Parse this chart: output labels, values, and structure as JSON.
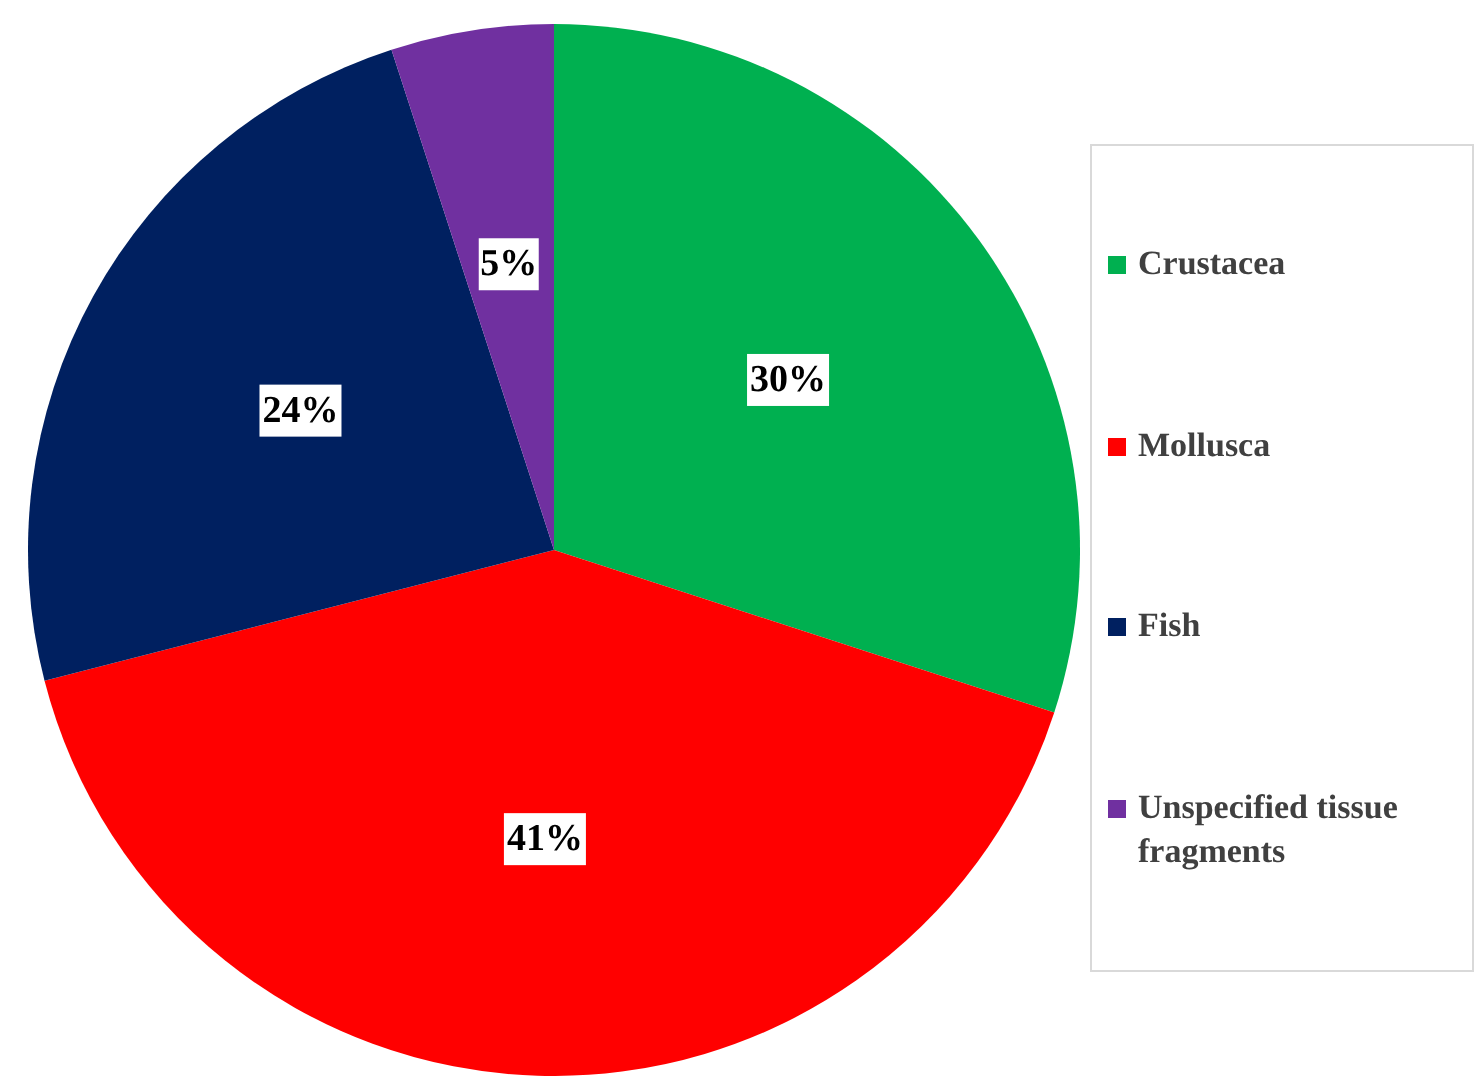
{
  "chart_data": {
    "type": "pie",
    "categories": [
      "Crustacea",
      "Mollusca",
      "Fish",
      "Unspecified tissue fragments"
    ],
    "values": [
      30,
      41,
      24,
      5
    ],
    "colors": [
      "#00b050",
      "#ff0000",
      "#002060",
      "#7030a0"
    ],
    "value_labels": [
      "30%",
      "41%",
      "24%",
      "5%"
    ],
    "legend": "right"
  }
}
